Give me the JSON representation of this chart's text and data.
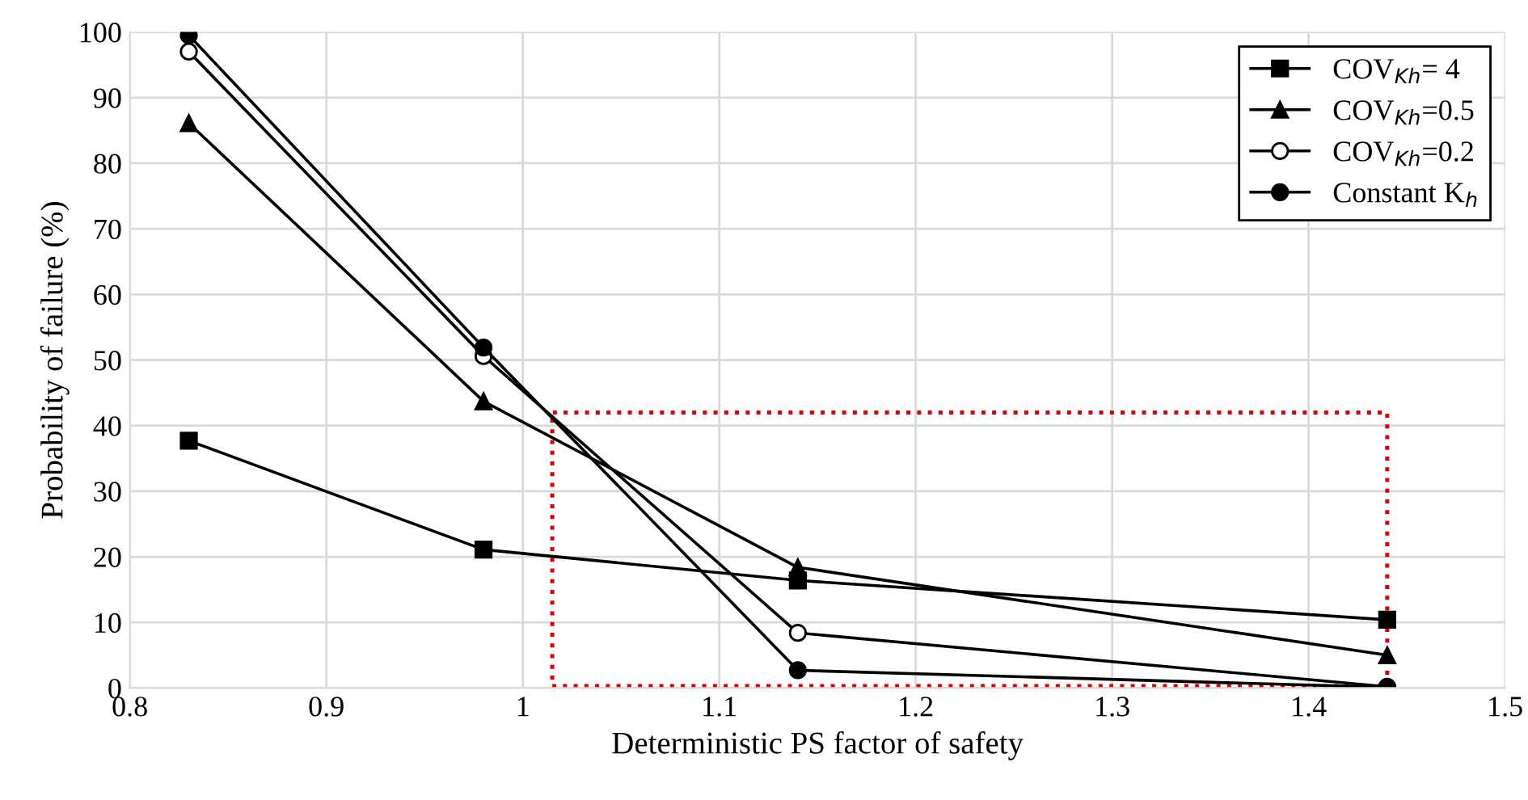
{
  "chart_data": {
    "type": "line",
    "xlabel": "Deterministic PS factor of safety",
    "ylabel": "Probability of failure (%)",
    "x": [
      0.83,
      0.98,
      1.14,
      1.44
    ],
    "series": [
      {
        "name": "COV$_{Kh}$= 4",
        "color": "#000000",
        "marker": "square",
        "values": [
          37.7,
          21.1,
          16.4,
          10.4
        ]
      },
      {
        "name": "COV$_{Kh}$=0.5",
        "color": "#000000",
        "marker": "triangle",
        "values": [
          86.1,
          43.7,
          18.4,
          5.0
        ]
      },
      {
        "name": "COV$_{Kh}$=0.2",
        "color": "#000000",
        "marker": "open circle",
        "values": [
          97,
          50.6,
          8.4,
          0.2
        ]
      },
      {
        "name": "Constant K$_{h}$",
        "color": "#000000",
        "marker": "circle",
        "values": [
          99.5,
          51.9,
          2.7,
          0.1
        ]
      }
    ],
    "xlim": [
      0.8,
      1.5
    ],
    "xticks": [
      0.8,
      0.9,
      1,
      1.1,
      1.2,
      1.3,
      1.4,
      1.5
    ],
    "ylim": [
      0,
      100
    ],
    "yticks": [
      0,
      10,
      20,
      30,
      40,
      50,
      60,
      70,
      80,
      90,
      100
    ],
    "grid": true,
    "legend": "top right",
    "line_style": "solid"
  }
}
